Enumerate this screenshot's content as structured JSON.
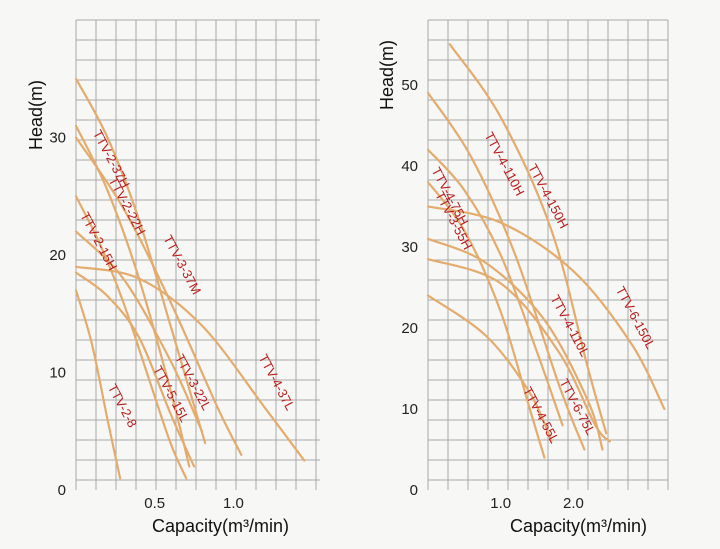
{
  "chart_data": [
    {
      "type": "line",
      "xlabel": "Capacity(m³/min)",
      "ylabel": "Head(m)",
      "xlim": [
        0,
        1.55
      ],
      "ylim": [
        0,
        40
      ],
      "x_ticks": [
        0.5,
        1.0
      ],
      "x_tick_labels": [
        "0.5",
        "1.0"
      ],
      "y_ticks": [
        0,
        10,
        20,
        30
      ],
      "y_tick_labels": [
        "0",
        "10",
        "20",
        "30"
      ],
      "grid": true,
      "colors": {
        "curve": "#e3ac6e",
        "label": "#b81d1d",
        "grid": "#a9a9a9"
      },
      "series": [
        {
          "name": "TTV-2-37H",
          "x": [
            0,
            0.2,
            0.4,
            0.6,
            0.82
          ],
          "y": [
            35,
            30,
            23,
            14,
            4
          ]
        },
        {
          "name": "TTV-2-22H",
          "x": [
            0,
            0.2,
            0.4,
            0.6,
            0.72
          ],
          "y": [
            31,
            25.5,
            18,
            8.5,
            2
          ]
        },
        {
          "name": "TTV-2-15H",
          "x": [
            0,
            0.15,
            0.3,
            0.45,
            0.6,
            0.7
          ],
          "y": [
            25,
            21,
            16,
            10,
            4,
            1
          ]
        },
        {
          "name": "TTV-3-37M",
          "x": [
            0,
            0.3,
            0.6,
            0.9,
            1.05
          ],
          "y": [
            30,
            24,
            16,
            7,
            3
          ]
        },
        {
          "name": "TTV-3-22L",
          "x": [
            0,
            0.3,
            0.6,
            0.8
          ],
          "y": [
            22,
            18,
            11,
            5
          ]
        },
        {
          "name": "TTV-4-37L",
          "x": [
            0,
            0.4,
            0.8,
            1.2,
            1.45
          ],
          "y": [
            19,
            18,
            14,
            7,
            2.5
          ]
        },
        {
          "name": "TTV-5-15L",
          "x": [
            0,
            0.2,
            0.4,
            0.6,
            0.75
          ],
          "y": [
            18.5,
            16.5,
            13,
            6.5,
            2
          ]
        },
        {
          "name": "TTV-2-8",
          "x": [
            0,
            0.1,
            0.2,
            0.28
          ],
          "y": [
            17,
            12.5,
            6,
            1
          ]
        }
      ],
      "label_positions": [
        {
          "name": "TTV-2-37H",
          "x": 0.2,
          "y": 28
        },
        {
          "name": "TTV-2-22H",
          "x": 0.3,
          "y": 24
        },
        {
          "name": "TTV-2-15H",
          "x": 0.12,
          "y": 21
        },
        {
          "name": "TTV-3-37M",
          "x": 0.65,
          "y": 19
        },
        {
          "name": "TTV-3-22L",
          "x": 0.72,
          "y": 9
        },
        {
          "name": "TTV-4-37L",
          "x": 1.25,
          "y": 9
        },
        {
          "name": "TTV-5-15L",
          "x": 0.58,
          "y": 8
        },
        {
          "name": "TTV-2-8",
          "x": 0.27,
          "y": 7
        }
      ]
    },
    {
      "type": "line",
      "xlabel": "Capacity(m³/min)",
      "ylabel": "Head(m)",
      "xlim": [
        0,
        3.3
      ],
      "ylim": [
        0,
        58
      ],
      "x_ticks": [
        1.0,
        2.0
      ],
      "x_tick_labels": [
        "1.0",
        "2.0"
      ],
      "y_ticks": [
        0,
        10,
        20,
        30,
        40,
        50
      ],
      "y_tick_labels": [
        "0",
        "10",
        "20",
        "30",
        "40",
        "50"
      ],
      "grid": true,
      "colors": {
        "curve": "#e3ac6e",
        "label": "#b81d1d",
        "grid": "#a9a9a9"
      },
      "series": [
        {
          "name": "TTV-4-150H",
          "x": [
            0.3,
            1.0,
            1.7,
            2.2,
            2.45
          ],
          "y": [
            55,
            46,
            32,
            15,
            7
          ]
        },
        {
          "name": "TTV-4-110H",
          "x": [
            0,
            0.6,
            1.2,
            1.8,
            2.15
          ],
          "y": [
            49,
            41,
            29,
            13,
            5
          ]
        },
        {
          "name": "TTV-4-75H",
          "x": [
            0,
            0.5,
            1.0,
            1.5,
            1.85
          ],
          "y": [
            42,
            37,
            29,
            17,
            8
          ]
        },
        {
          "name": "TTV-3-55H",
          "x": [
            0,
            0.5,
            1.0,
            1.4,
            1.6
          ],
          "y": [
            38,
            32,
            22,
            10,
            4
          ]
        },
        {
          "name": "TTV-6-150L",
          "x": [
            0,
            1.0,
            2.0,
            2.8,
            3.25
          ],
          "y": [
            35,
            33,
            27,
            18,
            10
          ]
        },
        {
          "name": "TTV-4-110L",
          "x": [
            0,
            0.8,
            1.6,
            2.2,
            2.4
          ],
          "y": [
            31,
            28,
            21,
            11,
            5
          ]
        },
        {
          "name": "TTV-6-75L",
          "x": [
            0,
            1.0,
            1.8,
            2.3,
            2.5
          ],
          "y": [
            28.5,
            25.5,
            17,
            8,
            6
          ]
        },
        {
          "name": "TTV-4-55L",
          "x": [
            0,
            0.8,
            1.4,
            1.7
          ],
          "y": [
            24,
            19,
            12,
            6
          ]
        }
      ],
      "label_positions": [
        {
          "name": "TTV-4-150H",
          "x": 1.6,
          "y": 36
        },
        {
          "name": "TTV-4-110H",
          "x": 1.0,
          "y": 40
        },
        {
          "name": "TTV-4-75H",
          "x": 0.25,
          "y": 36
        },
        {
          "name": "TTV-3-55H",
          "x": 0.3,
          "y": 33
        },
        {
          "name": "TTV-6-150L",
          "x": 2.8,
          "y": 21
        },
        {
          "name": "TTV-4-110L",
          "x": 1.9,
          "y": 20
        },
        {
          "name": "TTV-6-75L",
          "x": 2.0,
          "y": 10
        },
        {
          "name": "TTV-4-55L",
          "x": 1.5,
          "y": 9
        }
      ]
    }
  ]
}
